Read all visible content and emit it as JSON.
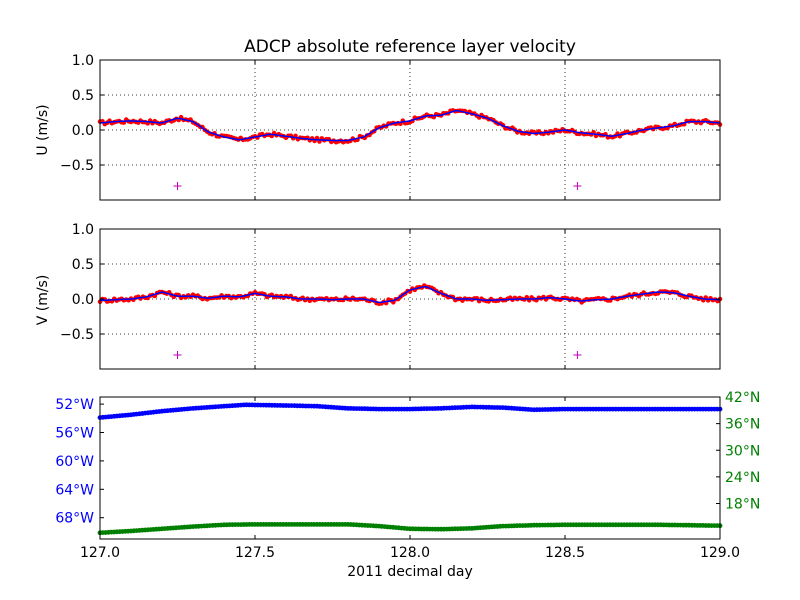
{
  "chart_data": [
    {
      "type": "scatter",
      "title": "ADCP absolute reference layer velocity",
      "xlabel": "",
      "ylabel": "U (m/s)",
      "xlim": [
        127.0,
        129.0
      ],
      "ylim": [
        -1.0,
        1.0
      ],
      "x_ticks": [
        127.0,
        127.5,
        128.0,
        128.5,
        129.0
      ],
      "y_ticks": [
        1.0,
        0.5,
        0.0,
        -0.5
      ],
      "y_tick_labels": [
        "1.0",
        "0.5",
        "0.0",
        "−0.5"
      ],
      "grid": true,
      "x_tick_labels_visible": false,
      "series": [
        {
          "style": "red dots with blue line",
          "colors": {
            "points": "#ff0000",
            "line": "#0000ff"
          },
          "x": [
            127.0,
            127.05,
            127.1,
            127.15,
            127.2,
            127.25,
            127.3,
            127.35,
            127.4,
            127.45,
            127.5,
            127.55,
            127.6,
            127.65,
            127.7,
            127.75,
            127.8,
            127.85,
            127.9,
            127.95,
            128.0,
            128.05,
            128.1,
            128.15,
            128.2,
            128.25,
            128.3,
            128.35,
            128.4,
            128.45,
            128.5,
            128.55,
            128.6,
            128.65,
            128.7,
            128.75,
            128.8,
            128.85,
            128.9,
            128.95,
            129.0
          ],
          "y": [
            0.1,
            0.12,
            0.13,
            0.12,
            0.1,
            0.17,
            0.12,
            -0.03,
            -0.1,
            -0.14,
            -0.1,
            -0.06,
            -0.09,
            -0.12,
            -0.14,
            -0.15,
            -0.15,
            -0.1,
            0.03,
            0.1,
            0.13,
            0.2,
            0.21,
            0.28,
            0.23,
            0.17,
            0.06,
            -0.02,
            -0.05,
            -0.03,
            0.0,
            -0.04,
            -0.06,
            -0.09,
            -0.05,
            0.0,
            0.03,
            0.06,
            0.12,
            0.12,
            0.1
          ]
        },
        {
          "style": "magenta plus markers",
          "colors": {
            "points": "#bf00bf"
          },
          "x": [
            127.25,
            128.54
          ],
          "y": [
            -0.8,
            -0.8
          ]
        }
      ]
    },
    {
      "type": "scatter",
      "title": "",
      "xlabel": "",
      "ylabel": "V (m/s)",
      "xlim": [
        127.0,
        129.0
      ],
      "ylim": [
        -1.0,
        1.0
      ],
      "x_ticks": [
        127.0,
        127.5,
        128.0,
        128.5,
        129.0
      ],
      "y_ticks": [
        1.0,
        0.5,
        0.0,
        -0.5
      ],
      "y_tick_labels": [
        "1.0",
        "0.5",
        "0.0",
        "−0.5"
      ],
      "grid": true,
      "x_tick_labels_visible": false,
      "series": [
        {
          "style": "red dots with blue line",
          "colors": {
            "points": "#ff0000",
            "line": "#0000ff"
          },
          "x": [
            127.0,
            127.05,
            127.1,
            127.15,
            127.2,
            127.25,
            127.3,
            127.35,
            127.4,
            127.45,
            127.5,
            127.55,
            127.6,
            127.65,
            127.7,
            127.75,
            127.8,
            127.85,
            127.9,
            127.95,
            128.0,
            128.05,
            128.1,
            128.15,
            128.2,
            128.25,
            128.3,
            128.35,
            128.4,
            128.45,
            128.5,
            128.55,
            128.6,
            128.65,
            128.7,
            128.75,
            128.8,
            128.85,
            128.9,
            128.95,
            129.0
          ],
          "y": [
            -0.02,
            -0.01,
            0.0,
            0.03,
            0.1,
            0.04,
            0.04,
            0.01,
            0.04,
            0.03,
            0.08,
            0.04,
            0.03,
            0.0,
            0.0,
            -0.01,
            0.0,
            0.0,
            -0.05,
            -0.02,
            0.13,
            0.18,
            0.08,
            0.0,
            0.0,
            -0.02,
            -0.01,
            0.0,
            0.0,
            0.02,
            0.0,
            -0.03,
            -0.01,
            0.0,
            0.04,
            0.07,
            0.1,
            0.09,
            0.04,
            0.0,
            -0.01
          ]
        },
        {
          "style": "magenta plus markers",
          "colors": {
            "points": "#bf00bf"
          },
          "x": [
            127.25,
            128.54
          ],
          "y": [
            -0.8,
            -0.8
          ]
        }
      ]
    },
    {
      "type": "scatter",
      "title": "",
      "xlabel": "2011 decimal day",
      "ylabel": "",
      "xlim": [
        127.0,
        129.0
      ],
      "x_ticks": [
        127.0,
        127.5,
        128.0,
        128.5,
        129.0
      ],
      "x_tick_labels": [
        "127.0",
        "127.5",
        "128.0",
        "128.5",
        "129.0"
      ],
      "grid": false,
      "left_axis": {
        "quantity": "longitude",
        "color": "#0000ff",
        "ylim": [
          -51,
          -71
        ],
        "ticks": [
          -52,
          -56,
          -60,
          -64,
          -68
        ],
        "tick_labels": [
          "52°W",
          "56°W",
          "60°W",
          "64°W",
          "68°W"
        ]
      },
      "right_axis": {
        "quantity": "latitude",
        "color": "#008000",
        "ylim": [
          10,
          42
        ],
        "ticks": [
          42,
          36,
          30,
          24,
          18
        ],
        "tick_labels": [
          "42°N",
          "36°N",
          "30°N",
          "24°N",
          "18°N"
        ]
      },
      "series": [
        {
          "axis": "left",
          "colors": {
            "points": "#0000ff"
          },
          "x": [
            127.0,
            127.1,
            127.2,
            127.3,
            127.4,
            127.47,
            127.6,
            127.7,
            127.8,
            127.9,
            128.0,
            128.1,
            128.2,
            128.3,
            128.4,
            128.5,
            128.6,
            128.7,
            128.8,
            128.9,
            129.0
          ],
          "y": [
            -53.9,
            -53.5,
            -53.0,
            -52.6,
            -52.3,
            -52.1,
            -52.2,
            -52.3,
            -52.6,
            -52.7,
            -52.7,
            -52.6,
            -52.4,
            -52.5,
            -52.8,
            -52.7,
            -52.7,
            -52.7,
            -52.7,
            -52.7,
            -52.7
          ]
        },
        {
          "axis": "right",
          "colors": {
            "points": "#008000"
          },
          "x": [
            127.0,
            127.1,
            127.2,
            127.3,
            127.4,
            127.5,
            127.6,
            127.7,
            127.8,
            127.9,
            128.0,
            128.1,
            128.2,
            128.3,
            128.4,
            128.5,
            128.6,
            128.7,
            128.8,
            128.9,
            129.0
          ],
          "y": [
            11.4,
            11.8,
            12.3,
            12.8,
            13.2,
            13.3,
            13.3,
            13.3,
            13.3,
            12.9,
            12.3,
            12.2,
            12.4,
            12.9,
            13.1,
            13.2,
            13.2,
            13.2,
            13.2,
            13.1,
            13.0
          ]
        }
      ]
    }
  ]
}
